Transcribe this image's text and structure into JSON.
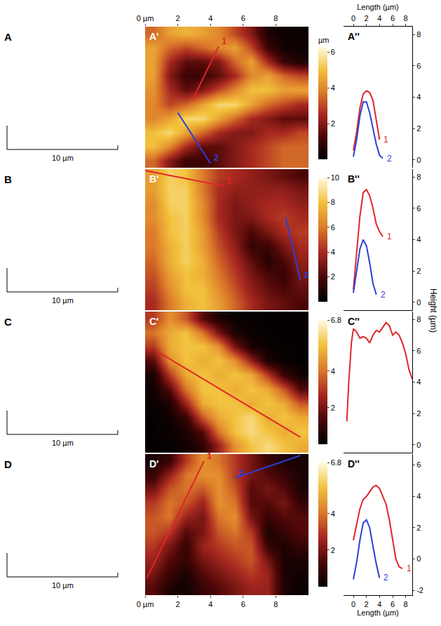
{
  "chart_data": [
    {
      "type": "surface",
      "label": "A",
      "scale_label": "10 µm"
    },
    {
      "type": "surface",
      "label": "B",
      "scale_label": "10 µm"
    },
    {
      "type": "surface",
      "label": "C",
      "scale_label": "10 µm"
    },
    {
      "type": "surface",
      "label": "D",
      "scale_label": "10 µm"
    },
    {
      "type": "heatmap",
      "label": "A'",
      "x": [
        0.5,
        1.5,
        2.5,
        3.5,
        4.5,
        5.5,
        6.5,
        7.5,
        8.5,
        9.5
      ],
      "y": [
        0.5,
        1.5,
        2.5,
        3.5,
        4.5,
        5.5,
        6.5,
        7.5,
        8.5,
        9.5
      ],
      "z": [
        [
          3.5,
          4.5,
          4.8,
          4.5,
          4.0,
          3.0,
          2.0,
          0.5,
          0.2,
          0.2
        ],
        [
          4.5,
          3.5,
          3.0,
          3.5,
          4.0,
          4.5,
          3.0,
          1.0,
          0.3,
          0.2
        ],
        [
          4.5,
          2.5,
          1.5,
          1.5,
          2.0,
          3.5,
          4.5,
          2.5,
          1.0,
          0.5
        ],
        [
          4.5,
          2.0,
          1.0,
          1.0,
          1.5,
          2.5,
          4.0,
          4.5,
          3.5,
          3.0
        ],
        [
          4.2,
          2.5,
          1.5,
          2.0,
          3.0,
          4.0,
          5.0,
          5.0,
          4.5,
          4.5
        ],
        [
          4.0,
          3.0,
          3.5,
          4.5,
          5.5,
          5.5,
          4.5,
          3.5,
          3.0,
          2.5
        ],
        [
          4.0,
          4.5,
          5.5,
          5.5,
          4.5,
          3.5,
          2.5,
          2.0,
          1.5,
          1.5
        ],
        [
          5.0,
          5.5,
          4.5,
          3.5,
          2.5,
          2.0,
          2.0,
          2.5,
          2.5,
          3.0
        ],
        [
          5.0,
          4.0,
          2.5,
          1.5,
          1.5,
          2.0,
          2.5,
          3.0,
          3.5,
          3.5
        ],
        [
          3.5,
          2.0,
          1.0,
          1.0,
          1.5,
          2.0,
          2.5,
          3.0,
          3.5,
          3.5
        ]
      ],
      "xlim": [
        0,
        10
      ],
      "ylim": [
        10,
        0
      ],
      "xticks": [
        {
          "value": 0,
          "label": "0 µm"
        },
        2,
        4,
        6,
        8
      ],
      "tick_labels": "x",
      "zlim": [
        0,
        6.3
      ],
      "zticks": [
        2,
        4,
        6
      ],
      "zlabel": "µm",
      "lines": [
        {
          "name": "1",
          "color": "#e0262a",
          "x": [
            4.5,
            2.9
          ],
          "y": [
            1.4,
            5.2
          ]
        },
        {
          "name": "2",
          "color": "#2b3fd6",
          "x": [
            4.0,
            2.0
          ],
          "y": [
            9.7,
            6.1
          ]
        }
      ]
    },
    {
      "type": "heatmap",
      "label": "B'",
      "x": [
        0.5,
        1.5,
        2.5,
        3.5,
        4.5,
        5.5,
        6.5,
        7.5,
        8.5,
        9.5
      ],
      "y": [
        0.5,
        1.5,
        2.5,
        3.5,
        4.5,
        5.5,
        6.5,
        7.5,
        8.5,
        9.5
      ],
      "z": [
        [
          7,
          8.5,
          8,
          6,
          4.5,
          4,
          3.5,
          3,
          2.5,
          2
        ],
        [
          7,
          8.5,
          8.5,
          6,
          4,
          3.5,
          3.5,
          3.5,
          3.5,
          3
        ],
        [
          6.5,
          8.5,
          8.5,
          6.5,
          4,
          3,
          3.5,
          4,
          4,
          3.5
        ],
        [
          6.5,
          8,
          8.5,
          6.5,
          4,
          3,
          3,
          4,
          4.5,
          4
        ],
        [
          6,
          8,
          8.5,
          7,
          4.5,
          3,
          2,
          3,
          4,
          4.5
        ],
        [
          6,
          7.5,
          8.5,
          7,
          5,
          3.5,
          1.5,
          1.5,
          3,
          4
        ],
        [
          5.5,
          7.5,
          8.5,
          7.5,
          5.5,
          4,
          2.5,
          1,
          2,
          3.5
        ],
        [
          5,
          7,
          8,
          7.5,
          6,
          4.5,
          3,
          2,
          1.5,
          3
        ],
        [
          4.5,
          6.5,
          8,
          8,
          6.5,
          5,
          3.5,
          2.5,
          2,
          2.5
        ],
        [
          4,
          6,
          7.5,
          8,
          7,
          5.5,
          4,
          3,
          2.5,
          2
        ]
      ],
      "xlim": [
        0,
        10
      ],
      "ylim": [
        10,
        0
      ],
      "tick_labels": false,
      "zlim": [
        0,
        10
      ],
      "zticks": [
        2,
        4,
        6,
        8,
        10
      ],
      "lines": [
        {
          "name": "1",
          "color": "#e0262a",
          "x": [
            4.8,
            0
          ],
          "y": [
            1.2,
            0.1
          ]
        },
        {
          "name": "2",
          "color": "#2b3fd6",
          "x": [
            9.5,
            8.6
          ],
          "y": [
            7.9,
            3.4
          ]
        }
      ]
    },
    {
      "type": "heatmap",
      "label": "C'",
      "x": [
        0.5,
        1.5,
        2.5,
        3.5,
        4.5,
        5.5,
        6.5,
        7.5,
        8.5,
        9.5
      ],
      "y": [
        0.5,
        1.5,
        2.5,
        3.5,
        4.5,
        5.5,
        6.5,
        7.5,
        8.5,
        9.5
      ],
      "z": [
        [
          3,
          4.5,
          3.5,
          1.5,
          0.5,
          0.2,
          0.1,
          0.1,
          0.1,
          0.1
        ],
        [
          4,
          5,
          5.5,
          4,
          2,
          0.5,
          0.2,
          0.1,
          0.1,
          0.1
        ],
        [
          3,
          5,
          5.5,
          5.5,
          4.5,
          2,
          0.5,
          0.2,
          0.1,
          0.1
        ],
        [
          1.5,
          4.5,
          5.5,
          5,
          5.5,
          4.5,
          2.5,
          0.5,
          0.2,
          0.1
        ],
        [
          0.5,
          3,
          5,
          5.5,
          5,
          5.5,
          5,
          3,
          1,
          0.3
        ],
        [
          0.3,
          1.5,
          4,
          5.5,
          5.5,
          5,
          5.5,
          5,
          3.5,
          1.5
        ],
        [
          0.2,
          0.5,
          2.5,
          5,
          5.5,
          5.5,
          5,
          5.5,
          5,
          3.5
        ],
        [
          0.1,
          0.3,
          1,
          3.5,
          5,
          5.5,
          6,
          5,
          5.5,
          5
        ],
        [
          0.1,
          0.2,
          0.5,
          1.5,
          4,
          5.5,
          6,
          5.5,
          5,
          5.5
        ],
        [
          0.1,
          0.1,
          0.3,
          0.8,
          2.5,
          4.5,
          5.5,
          6,
          5.5,
          5
        ]
      ],
      "xlim": [
        0,
        10
      ],
      "ylim": [
        10,
        0
      ],
      "tick_labels": false,
      "zlim": [
        0,
        6.8
      ],
      "zticks": [
        2,
        4,
        6.8
      ],
      "lines": [
        {
          "color": "#e0262a",
          "x": [
            0.7,
            9.5
          ],
          "y": [
            2.8,
            8.9
          ]
        }
      ]
    },
    {
      "type": "heatmap",
      "label": "D'",
      "x": [
        0.5,
        1.5,
        2.5,
        3.5,
        4.5,
        5.5,
        6.5,
        7.5,
        8.5,
        9.5
      ],
      "y": [
        0.5,
        1.5,
        2.5,
        3.5,
        4.5,
        5.5,
        6.5,
        7.5,
        8.5,
        9.5
      ],
      "z": [
        [
          0.5,
          1,
          3,
          4.5,
          4,
          3,
          2,
          1,
          0.5,
          0.5
        ],
        [
          1,
          2.5,
          4,
          4.5,
          4.5,
          3,
          2,
          1.5,
          1,
          0.5
        ],
        [
          2,
          3.5,
          4,
          3.5,
          4.5,
          3.5,
          1.5,
          2,
          1.5,
          0.5
        ],
        [
          3,
          4,
          3.5,
          2.5,
          4.5,
          4,
          1.5,
          1.5,
          2,
          1
        ],
        [
          3.5,
          4,
          2.5,
          2,
          4,
          4.5,
          2,
          1,
          1.5,
          1.5
        ],
        [
          3.5,
          3,
          1.5,
          2,
          3.5,
          4,
          3,
          0.5,
          1,
          1.5
        ],
        [
          3,
          2,
          1,
          2.5,
          3,
          3.5,
          3.5,
          1,
          0.5,
          1
        ],
        [
          2.5,
          1.5,
          1,
          2,
          2.5,
          3,
          3.5,
          2,
          0.5,
          0.5
        ],
        [
          2,
          1,
          0.5,
          1.5,
          2,
          2.5,
          3,
          2.5,
          0.5,
          0.3
        ],
        [
          1.5,
          0.5,
          0.3,
          1,
          1.5,
          2,
          2.5,
          2.5,
          0.5,
          0.2
        ]
      ],
      "xlim": [
        0,
        10
      ],
      "ylim": [
        10,
        0
      ],
      "xticks": [
        {
          "value": 0,
          "label": "0 µm"
        },
        2,
        4,
        6,
        8
      ],
      "tick_labels": "x",
      "zlim": [
        0,
        6.8
      ],
      "zticks": [
        2,
        4,
        6.8
      ],
      "lines": [
        {
          "name": "1",
          "color": "#e0262a",
          "x": [
            3.6,
            0.1
          ],
          "y": [
            0.5,
            8.8
          ]
        },
        {
          "name": "2",
          "color": "#2b3fd6",
          "x": [
            5.5,
            9.5
          ],
          "y": [
            1.7,
            0.1
          ]
        }
      ]
    },
    {
      "type": "line",
      "label": "A''",
      "xlabel": "Length (µm)",
      "xlim": [
        -1.5,
        9
      ],
      "ylim": [
        -0.5,
        8.5
      ],
      "xticks": [
        0,
        2,
        4,
        6,
        8
      ],
      "yticks": [
        0,
        2,
        4,
        6,
        8
      ],
      "tick_labels": true,
      "series": [
        {
          "name": "1",
          "color": "#e0262a",
          "x": [
            0,
            0.5,
            1,
            1.5,
            2,
            2.5,
            3,
            3.5,
            4
          ],
          "values": [
            0.6,
            1.8,
            3.3,
            4.2,
            4.4,
            4.3,
            3.8,
            2.5,
            1.3
          ]
        },
        {
          "name": "2",
          "color": "#2b3fd6",
          "x": [
            0,
            0.5,
            1,
            1.5,
            2,
            2.5,
            3,
            3.5,
            4,
            4.5
          ],
          "values": [
            0.2,
            1.3,
            2.8,
            3.7,
            3.7,
            3.0,
            2.0,
            1.0,
            0.3,
            0.1
          ]
        }
      ]
    },
    {
      "type": "line",
      "label": "B''",
      "ylabel": "Height (µm)",
      "xlim": [
        -1.5,
        9
      ],
      "ylim": [
        -0.5,
        8.5
      ],
      "yticks": [
        0,
        2,
        4,
        6,
        8
      ],
      "tick_labels": "y",
      "series": [
        {
          "name": "1",
          "color": "#e0262a",
          "x": [
            0,
            0.5,
            1,
            1.5,
            2,
            2.5,
            3,
            3.5,
            4,
            4.5
          ],
          "values": [
            0.8,
            3,
            5.5,
            7,
            7.2,
            6.8,
            6,
            5,
            4.5,
            4.2
          ]
        },
        {
          "name": "2",
          "color": "#2b3fd6",
          "x": [
            0,
            0.5,
            1,
            1.5,
            2,
            2.5,
            3,
            3.5
          ],
          "values": [
            0.6,
            2,
            3.4,
            4,
            3.6,
            2.5,
            1.2,
            0.5
          ]
        }
      ]
    },
    {
      "type": "line",
      "label": "C''",
      "xlim": [
        -1.5,
        9
      ],
      "ylim": [
        -0.5,
        8.5
      ],
      "yticks": [
        0,
        2,
        4,
        6,
        8
      ],
      "tick_labels": "y",
      "series": [
        {
          "color": "#e0262a",
          "x": [
            -1,
            -0.7,
            -0.3,
            0,
            0.5,
            1,
            1.5,
            2,
            2.5,
            3,
            3.5,
            4,
            4.5,
            5,
            5.5,
            6,
            6.5,
            7,
            7.5,
            8,
            8.5,
            9
          ],
          "values": [
            1.5,
            4,
            6.5,
            7.4,
            7.2,
            6.8,
            6.9,
            6.8,
            6.5,
            7,
            7.3,
            7.2,
            7.5,
            7.8,
            7.6,
            7,
            7.2,
            7,
            6.5,
            5.8,
            4.8,
            4.2
          ]
        }
      ]
    },
    {
      "type": "line",
      "label": "D''",
      "xlabel": "Length (µm)",
      "xlim": [
        -1.5,
        9
      ],
      "ylim": [
        -2.3,
        6.7
      ],
      "xticks": [
        0,
        2,
        4,
        6,
        8
      ],
      "yticks": [
        -2,
        0,
        2,
        4,
        6
      ],
      "tick_labels": true,
      "series": [
        {
          "name": "1",
          "color": "#e0262a",
          "x": [
            0,
            0.5,
            1,
            1.5,
            2,
            2.5,
            3,
            3.5,
            4,
            4.5,
            5,
            5.5,
            6,
            6.5,
            7,
            7.5
          ],
          "values": [
            1.2,
            2.2,
            3.2,
            3.8,
            4,
            4.3,
            4.6,
            4.7,
            4.5,
            4,
            3.5,
            2.5,
            1.2,
            0,
            -0.5,
            -0.6
          ]
        },
        {
          "name": "2",
          "color": "#2b3fd6",
          "x": [
            0,
            0.5,
            1,
            1.5,
            2,
            2.5,
            3,
            3.5,
            4
          ],
          "values": [
            -1.3,
            -0.2,
            1.2,
            2.3,
            2.5,
            2,
            0.8,
            -0.3,
            -1.2
          ]
        }
      ]
    }
  ]
}
